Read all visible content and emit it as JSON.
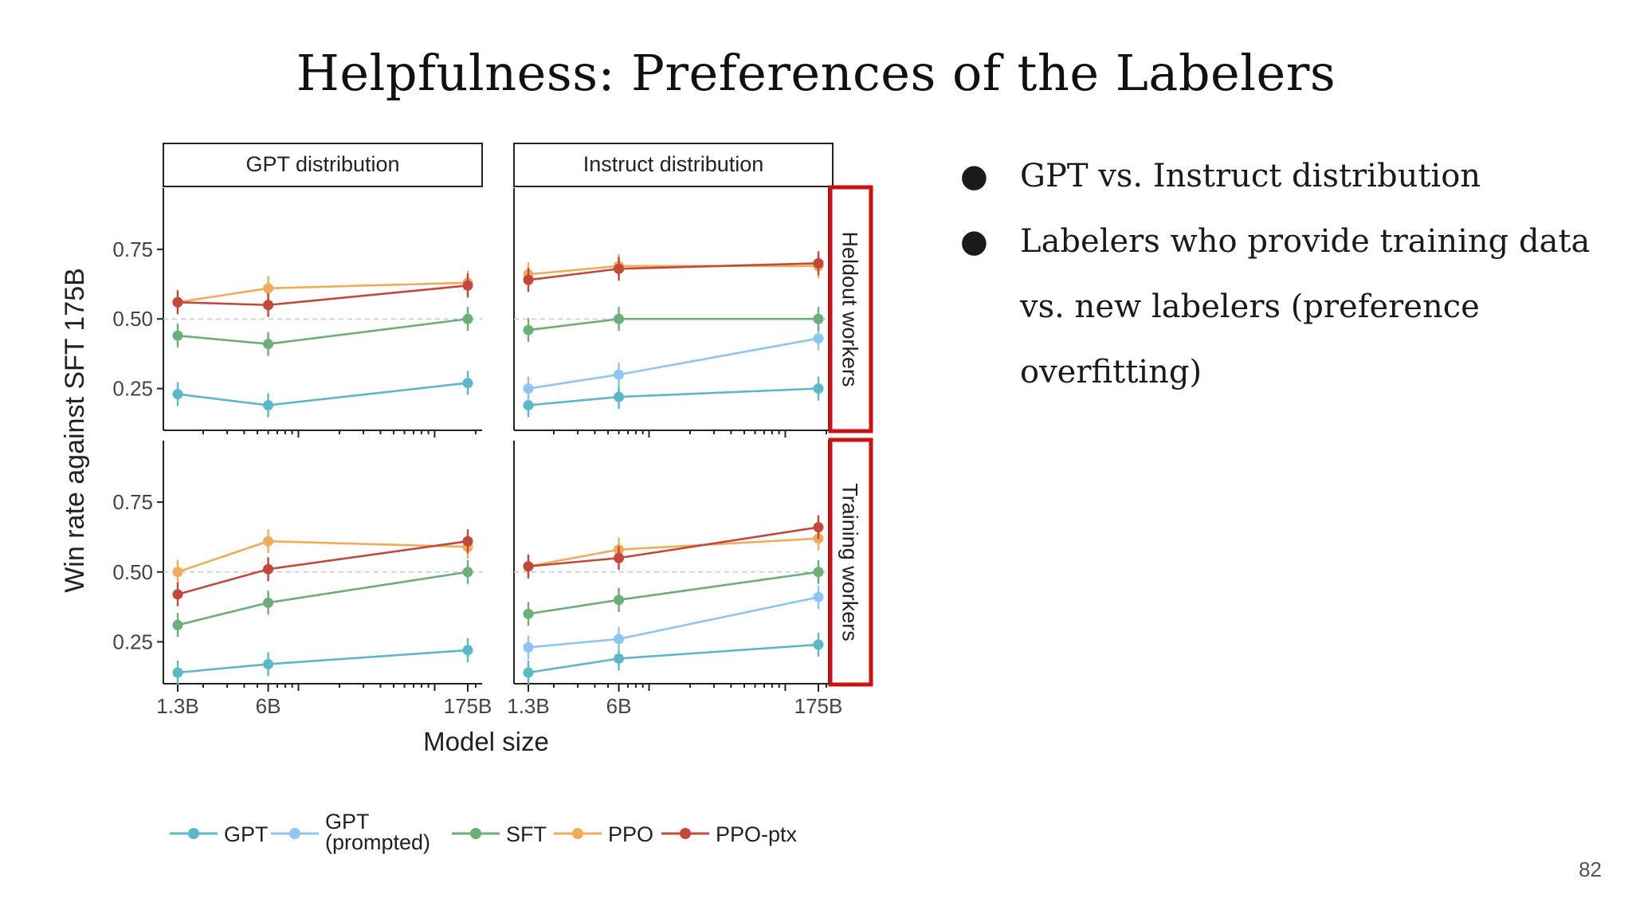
{
  "slide": {
    "title": "Helpfulness: Preferences of the Labelers",
    "bullets": [
      "GPT vs. Instruct distribution",
      "Labelers who provide training data vs. new labelers (preference overfitting)"
    ],
    "page_number": "82"
  },
  "chart_data": {
    "type": "line",
    "ylabel": "Win rate against SFT 175B",
    "xlabel": "Model size",
    "x_scale": "log",
    "x": [
      "1.3B",
      "6B",
      "175B"
    ],
    "x_values": [
      1.3,
      6,
      175
    ],
    "yticks": [
      "0.25",
      "0.50",
      "0.75"
    ],
    "ylim": [
      0.1,
      0.97
    ],
    "reference_line": 0.5,
    "highlight_color": "#cc1111",
    "legend": [
      {
        "name": "GPT",
        "color": "#5bb8c8"
      },
      {
        "name": "GPT (prompted)",
        "color": "#8ec5f2"
      },
      {
        "name": "SFT",
        "color": "#6aaf78"
      },
      {
        "name": "PPO",
        "color": "#f0ac58"
      },
      {
        "name": "PPO-ptx",
        "color": "#c4483a"
      }
    ],
    "panels": [
      {
        "col": "GPT distribution",
        "row": "Heldout workers",
        "series": [
          {
            "name": "GPT",
            "values": [
              0.23,
              0.19,
              0.27
            ]
          },
          {
            "name": "SFT",
            "values": [
              0.44,
              0.41,
              0.5
            ]
          },
          {
            "name": "PPO",
            "values": [
              0.56,
              0.61,
              0.63
            ]
          },
          {
            "name": "PPO-ptx",
            "values": [
              0.56,
              0.55,
              0.62
            ]
          }
        ]
      },
      {
        "col": "Instruct distribution",
        "row": "Heldout workers",
        "series": [
          {
            "name": "GPT",
            "values": [
              0.19,
              0.22,
              0.25
            ]
          },
          {
            "name": "GPT (prompted)",
            "values": [
              0.25,
              0.3,
              0.43
            ]
          },
          {
            "name": "SFT",
            "values": [
              0.46,
              0.5,
              0.5
            ]
          },
          {
            "name": "PPO",
            "values": [
              0.66,
              0.69,
              0.69
            ]
          },
          {
            "name": "PPO-ptx",
            "values": [
              0.64,
              0.68,
              0.7
            ]
          }
        ]
      },
      {
        "col": "GPT distribution",
        "row": "Training workers",
        "series": [
          {
            "name": "GPT",
            "values": [
              0.14,
              0.17,
              0.22
            ]
          },
          {
            "name": "SFT",
            "values": [
              0.31,
              0.39,
              0.5
            ]
          },
          {
            "name": "PPO",
            "values": [
              0.5,
              0.61,
              0.59
            ]
          },
          {
            "name": "PPO-ptx",
            "values": [
              0.42,
              0.51,
              0.61
            ]
          }
        ]
      },
      {
        "col": "Instruct distribution",
        "row": "Training workers",
        "series": [
          {
            "name": "GPT",
            "values": [
              0.14,
              0.19,
              0.24
            ]
          },
          {
            "name": "GPT (prompted)",
            "values": [
              0.23,
              0.26,
              0.41
            ]
          },
          {
            "name": "SFT",
            "values": [
              0.35,
              0.4,
              0.5
            ]
          },
          {
            "name": "PPO",
            "values": [
              0.52,
              0.58,
              0.62
            ]
          },
          {
            "name": "PPO-ptx",
            "values": [
              0.52,
              0.55,
              0.66
            ]
          }
        ]
      }
    ]
  }
}
